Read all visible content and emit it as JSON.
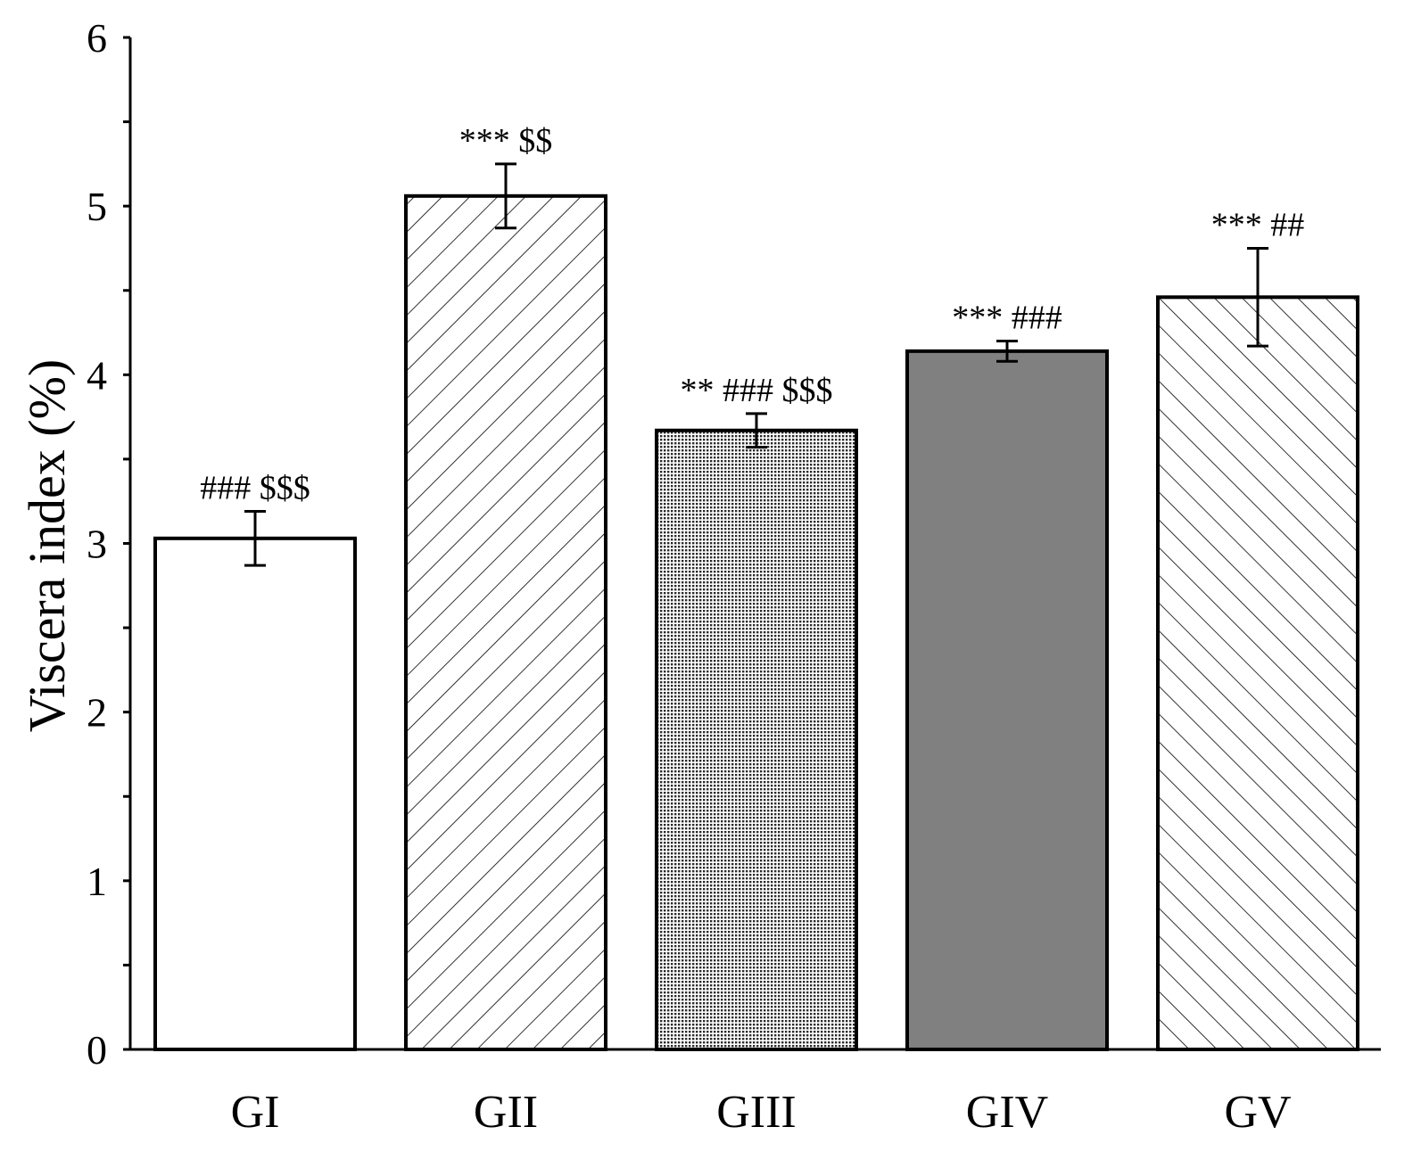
{
  "chart_data": {
    "type": "bar",
    "title": "",
    "xlabel": "",
    "ylabel": "Viscera index (%)",
    "ylim": [
      0,
      6
    ],
    "yticks": [
      0,
      1,
      2,
      3,
      4,
      5,
      6
    ],
    "grid": false,
    "legend": "none",
    "categories": [
      "GI",
      "GII",
      "GIII",
      "GIV",
      "GV"
    ],
    "values": [
      3.03,
      5.06,
      3.67,
      4.14,
      4.46
    ],
    "errors": [
      0.16,
      0.19,
      0.1,
      0.06,
      0.29
    ],
    "annotations": [
      "### $$$",
      "*** $$",
      "** ### $$$",
      "*** ###",
      "*** ##"
    ],
    "fills": [
      "white",
      "diagonal-up",
      "dotted",
      "solid-gray",
      "diagonal-down"
    ]
  },
  "colors": {
    "axis": "#000000",
    "bar_edge": "#000000",
    "solid_gray": "#808080",
    "hatch": "#000000",
    "background": "#ffffff"
  }
}
